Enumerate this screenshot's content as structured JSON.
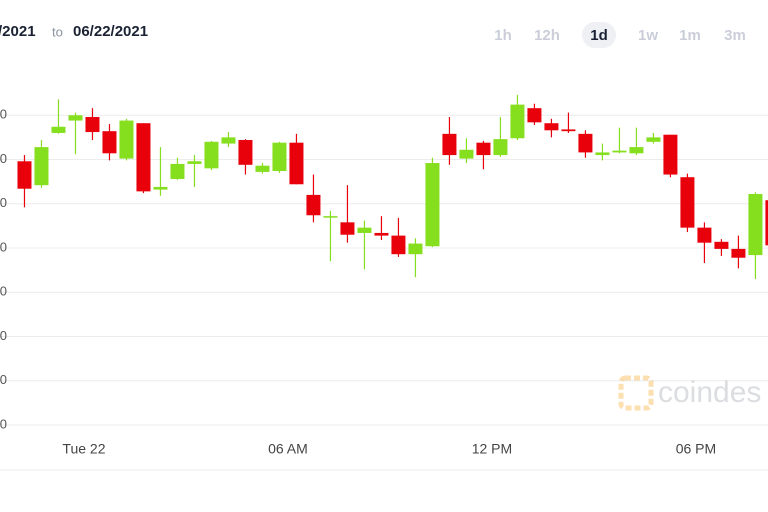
{
  "header": {
    "date_from": "/2021",
    "date_sep": "to",
    "date_to": "06/22/2021",
    "ranges": [
      "1h",
      "12h",
      "1d",
      "1w",
      "1m",
      "3m"
    ],
    "selected_range": 2
  },
  "watermark": "coindes",
  "chart_data": {
    "type": "candlestick",
    "x": [
      -1.75,
      -1.25,
      -0.75,
      -0.25,
      0.25,
      0.75,
      1.25,
      1.75,
      2.25,
      2.75,
      3.25,
      3.75,
      4.25,
      4.75,
      5.25,
      5.75,
      6.25,
      6.75,
      7.25,
      7.75,
      8.25,
      8.75,
      9.25,
      9.75,
      10.25,
      10.75,
      11.25,
      11.75,
      12.25,
      12.75,
      13.25,
      13.75,
      14.25,
      14.75,
      15.25,
      15.75,
      16.25,
      16.75,
      17.25,
      17.75,
      18.25,
      18.75,
      19.25,
      19.75,
      20.25
    ],
    "open": [
      32980,
      32710,
      33300,
      33440,
      33480,
      33320,
      33010,
      33410,
      32660,
      32780,
      32950,
      32900,
      33180,
      33220,
      32860,
      32870,
      33190,
      32600,
      32350,
      32290,
      32170,
      32170,
      32140,
      31930,
      32020,
      33290,
      33010,
      33190,
      33050,
      33240,
      33580,
      33410,
      33340,
      33290,
      33050,
      33080,
      33070,
      33200,
      33280,
      32800,
      32230,
      32070,
      31990,
      31920,
      32540
    ],
    "high": [
      33050,
      33220,
      33680,
      33530,
      33580,
      33400,
      33460,
      33410,
      33140,
      33020,
      33050,
      33210,
      33310,
      33230,
      32960,
      33200,
      33290,
      32830,
      32420,
      32710,
      32310,
      32360,
      32340,
      32110,
      33020,
      33480,
      33240,
      33210,
      33480,
      33730,
      33630,
      33460,
      33530,
      33330,
      33180,
      33360,
      33360,
      33300,
      33280,
      32840,
      32290,
      32100,
      32140,
      32630,
      32540
    ],
    "low": [
      32460,
      32680,
      33290,
      33060,
      33220,
      32990,
      32990,
      32620,
      32590,
      32770,
      32690,
      32880,
      33140,
      32830,
      32840,
      32850,
      32720,
      32290,
      31850,
      32060,
      31760,
      32090,
      31900,
      31670,
      32010,
      32940,
      32960,
      32890,
      33030,
      33220,
      33390,
      33250,
      33300,
      33020,
      32990,
      33070,
      33050,
      33180,
      32800,
      32180,
      31830,
      31910,
      31770,
      31650,
      32030
    ],
    "close": [
      32670,
      33140,
      33370,
      33500,
      33310,
      33070,
      33440,
      32640,
      32690,
      32950,
      32980,
      33200,
      33250,
      32940,
      32930,
      33190,
      32720,
      32370,
      32360,
      32150,
      32230,
      32140,
      31930,
      32050,
      32960,
      33050,
      33110,
      33050,
      33230,
      33620,
      33420,
      33330,
      33320,
      33080,
      33080,
      33100,
      33140,
      33250,
      32830,
      32230,
      32060,
      31990,
      31890,
      32610,
      32030
    ],
    "up_color": "#85de1e",
    "down_color": "#e8000b",
    "xlim": [
      -2.47,
      20.12
    ],
    "xticks": [
      {
        "value": 0,
        "label": "Tue 22"
      },
      {
        "value": 6,
        "label": "06 AM"
      },
      {
        "value": 12,
        "label": "12 PM"
      },
      {
        "value": 18,
        "label": "06 PM"
      }
    ],
    "ylim": [
      30000,
      34000
    ],
    "yticks": [
      {
        "value": 30000,
        "label": "0"
      },
      {
        "value": 30500,
        "label": "0"
      },
      {
        "value": 31000,
        "label": "0"
      },
      {
        "value": 31500,
        "label": "0"
      },
      {
        "value": 32000,
        "label": "0"
      },
      {
        "value": 32500,
        "label": "0"
      },
      {
        "value": 33000,
        "label": "0"
      },
      {
        "value": 33500,
        "label": "0"
      }
    ],
    "grid": true
  }
}
